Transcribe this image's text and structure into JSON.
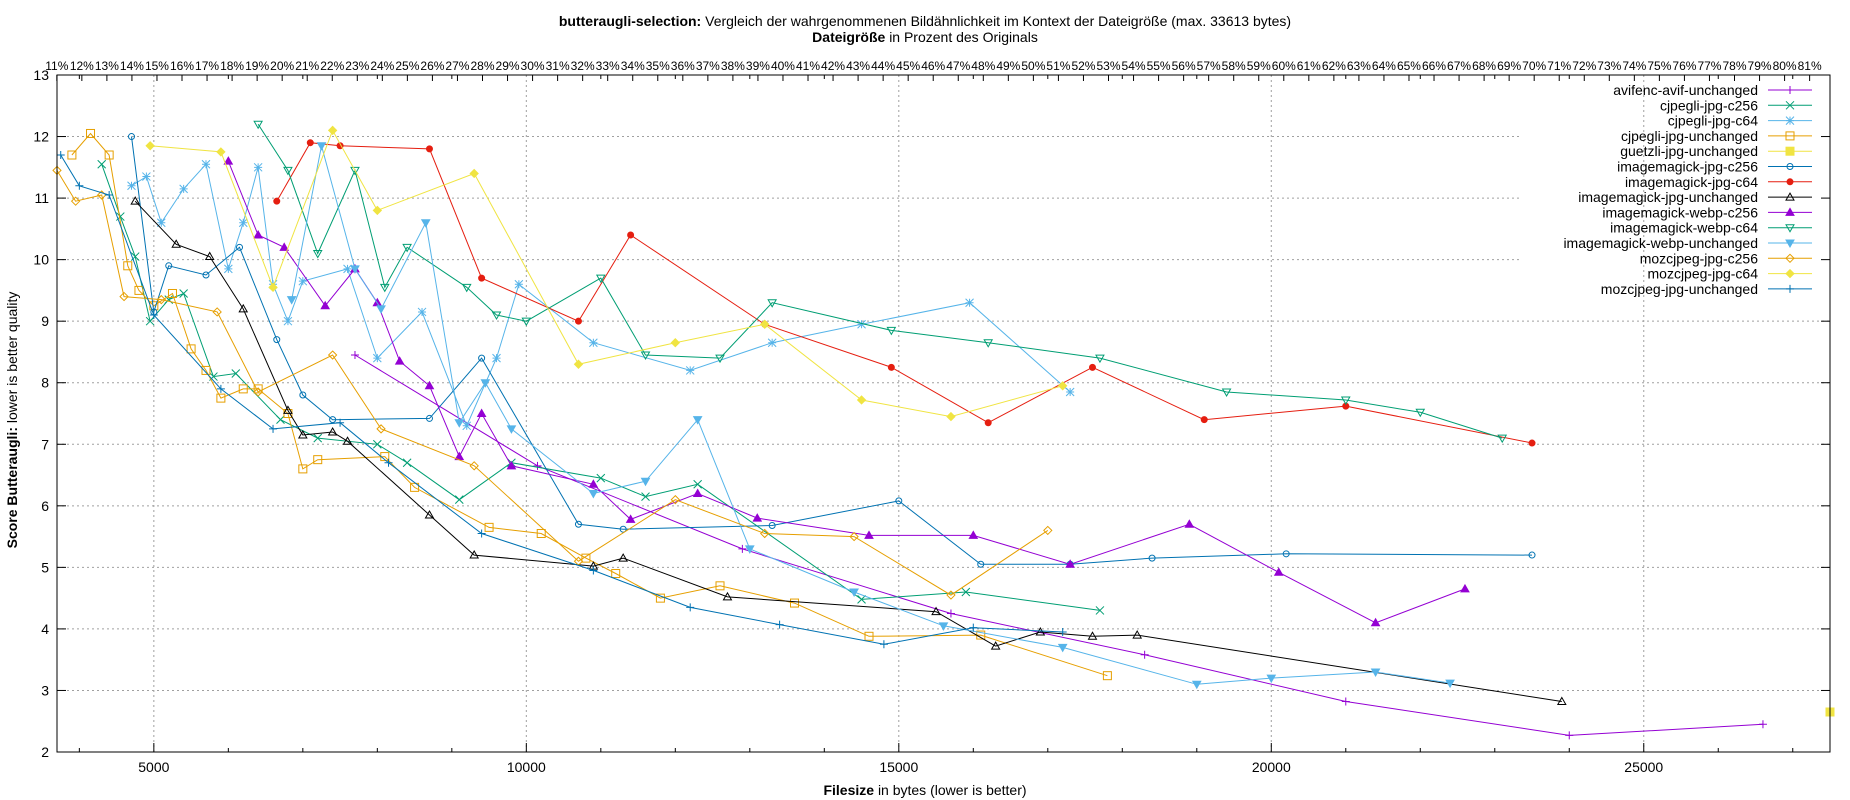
{
  "chart_data": {
    "type": "line",
    "title": "butteraugli-selection:",
    "subtitle": "Vergleich der wahrgenommenen Bildähnlichkeit im Kontext der Dateigröße (max. 33613 bytes)",
    "x2label_bold": "Dateigröße",
    "x2label_rest": "in Prozent des Originals",
    "xlabel_bold": "Filesize",
    "xlabel_rest": "in bytes (lower is better)",
    "ylabel_bold": "Score Butteraugli:",
    "ylabel_rest": "lower is better quality",
    "xlim": [
      3700,
      27500
    ],
    "ylim": [
      2,
      13
    ],
    "xticks": [
      5000,
      10000,
      15000,
      20000,
      25000
    ],
    "yticks": [
      2,
      3,
      4,
      5,
      6,
      7,
      8,
      9,
      10,
      11,
      12,
      13
    ],
    "x2max_bytes": 33613,
    "x2_ticks_percent": [
      11,
      12,
      13,
      14,
      15,
      16,
      17,
      18,
      19,
      20,
      21,
      22,
      23,
      24,
      25,
      26,
      27,
      28,
      29,
      30,
      31,
      32,
      33,
      34,
      35,
      36,
      37,
      38,
      39,
      40,
      41,
      42,
      43,
      44,
      45,
      46,
      47,
      48,
      49,
      50,
      51,
      52,
      53,
      54,
      55,
      56,
      57,
      58,
      59,
      60,
      61,
      62,
      63,
      64,
      65,
      66,
      67,
      68,
      69,
      70,
      71,
      72,
      73,
      74,
      75,
      76,
      77,
      78,
      79,
      80,
      81
    ],
    "grid": true,
    "legend_position": "top-right",
    "series": [
      {
        "name": "avifenc-avif-unchanged",
        "color": "#9400d3",
        "marker": "plus",
        "points": [
          [
            7700,
            8.45
          ],
          [
            10150,
            6.65
          ],
          [
            12900,
            5.3
          ],
          [
            15700,
            4.25
          ],
          [
            18300,
            3.58
          ],
          [
            21000,
            2.82
          ],
          [
            24000,
            2.27
          ],
          [
            26600,
            2.45
          ]
        ]
      },
      {
        "name": "cjpegli-jpg-c256",
        "color": "#009e73",
        "marker": "cross",
        "points": [
          [
            4300,
            11.55
          ],
          [
            4550,
            10.7
          ],
          [
            4750,
            10.05
          ],
          [
            4950,
            9.0
          ],
          [
            5200,
            9.35
          ],
          [
            5400,
            9.45
          ],
          [
            5800,
            8.1
          ],
          [
            6100,
            8.15
          ],
          [
            6700,
            7.4
          ],
          [
            7200,
            7.1
          ],
          [
            8000,
            7.0
          ],
          [
            8400,
            6.7
          ],
          [
            9100,
            6.1
          ],
          [
            9800,
            6.7
          ],
          [
            11000,
            6.45
          ],
          [
            11600,
            6.15
          ],
          [
            12300,
            6.35
          ],
          [
            14500,
            4.48
          ],
          [
            15900,
            4.6
          ],
          [
            17700,
            4.3
          ]
        ]
      },
      {
        "name": "cjpegli-jpg-c64",
        "color": "#56b4e9",
        "marker": "star",
        "points": [
          [
            4700,
            11.2
          ],
          [
            4900,
            11.35
          ],
          [
            5100,
            10.6
          ],
          [
            5400,
            11.15
          ],
          [
            5700,
            11.55
          ],
          [
            6000,
            9.85
          ],
          [
            6200,
            10.6
          ],
          [
            6400,
            11.5
          ],
          [
            6600,
            9.6
          ],
          [
            6800,
            9.0
          ],
          [
            7000,
            9.65
          ],
          [
            7600,
            9.85
          ],
          [
            8000,
            8.4
          ],
          [
            8600,
            9.15
          ],
          [
            9200,
            7.3
          ],
          [
            9600,
            8.4
          ],
          [
            9900,
            9.6
          ],
          [
            10900,
            8.65
          ],
          [
            12200,
            8.2
          ],
          [
            13300,
            8.65
          ],
          [
            14500,
            8.95
          ],
          [
            15950,
            9.3
          ],
          [
            17300,
            7.85
          ]
        ]
      },
      {
        "name": "cjpegli-jpg-unchanged",
        "color": "#e69f00",
        "marker": "square",
        "points": [
          [
            3900,
            11.7
          ],
          [
            4150,
            12.05
          ],
          [
            4400,
            11.7
          ],
          [
            4650,
            9.9
          ],
          [
            4800,
            9.5
          ],
          [
            5000,
            9.25
          ],
          [
            5250,
            9.45
          ],
          [
            5500,
            8.55
          ],
          [
            5700,
            8.2
          ],
          [
            5900,
            7.75
          ],
          [
            6200,
            7.9
          ],
          [
            6400,
            7.9
          ],
          [
            6800,
            7.5
          ],
          [
            7000,
            6.6
          ],
          [
            7200,
            6.75
          ],
          [
            8100,
            6.8
          ],
          [
            8500,
            6.3
          ],
          [
            9500,
            5.65
          ],
          [
            10200,
            5.55
          ],
          [
            10800,
            5.15
          ],
          [
            11200,
            4.9
          ],
          [
            11800,
            4.5
          ],
          [
            12600,
            4.7
          ],
          [
            13600,
            4.42
          ],
          [
            14600,
            3.88
          ],
          [
            16100,
            3.9
          ],
          [
            17800,
            3.24
          ]
        ]
      },
      {
        "name": "guetzli-jpg-unchanged",
        "color": "#f0e442",
        "marker": "filled-square",
        "points": [
          [
            27500,
            2.65
          ]
        ]
      },
      {
        "name": "imagemagick-jpg-c256",
        "color": "#0072b2",
        "marker": "circle",
        "points": [
          [
            4700,
            12.0
          ],
          [
            5000,
            9.15
          ],
          [
            5200,
            9.9
          ],
          [
            5700,
            9.75
          ],
          [
            6150,
            10.2
          ],
          [
            6650,
            8.7
          ],
          [
            7000,
            7.8
          ],
          [
            7400,
            7.4
          ],
          [
            8700,
            7.42
          ],
          [
            9400,
            8.4
          ],
          [
            10700,
            5.7
          ],
          [
            11300,
            5.62
          ],
          [
            13300,
            5.68
          ],
          [
            15000,
            6.08
          ],
          [
            16100,
            5.05
          ],
          [
            17300,
            5.05
          ],
          [
            18400,
            5.15
          ],
          [
            20200,
            5.22
          ],
          [
            23500,
            5.2
          ]
        ]
      },
      {
        "name": "imagemagick-jpg-c64",
        "color": "#e51e10",
        "marker": "filled-circle",
        "points": [
          [
            6650,
            10.95
          ],
          [
            7100,
            11.9
          ],
          [
            7500,
            11.85
          ],
          [
            8700,
            11.8
          ],
          [
            9400,
            9.7
          ],
          [
            10700,
            9.0
          ],
          [
            11400,
            10.4
          ],
          [
            13200,
            8.95
          ],
          [
            14900,
            8.25
          ],
          [
            16200,
            7.35
          ],
          [
            17600,
            8.25
          ],
          [
            19100,
            7.4
          ],
          [
            21000,
            7.62
          ],
          [
            23500,
            7.02
          ]
        ]
      },
      {
        "name": "imagemagick-jpg-unchanged",
        "color": "#000000",
        "marker": "triangle",
        "points": [
          [
            4750,
            10.95
          ],
          [
            5300,
            10.25
          ],
          [
            5750,
            10.05
          ],
          [
            6200,
            9.2
          ],
          [
            6800,
            7.55
          ],
          [
            7000,
            7.15
          ],
          [
            7400,
            7.2
          ],
          [
            7600,
            7.05
          ],
          [
            8700,
            5.85
          ],
          [
            9300,
            5.2
          ],
          [
            10900,
            5.02
          ],
          [
            11300,
            5.15
          ],
          [
            12700,
            4.52
          ],
          [
            15500,
            4.28
          ],
          [
            16300,
            3.72
          ],
          [
            16900,
            3.95
          ],
          [
            17600,
            3.88
          ],
          [
            18200,
            3.9
          ],
          [
            23900,
            2.82
          ]
        ]
      },
      {
        "name": "imagemagick-webp-c256",
        "color": "#9400d3",
        "marker": "filled-triangle",
        "points": [
          [
            6000,
            11.6
          ],
          [
            6400,
            10.4
          ],
          [
            6750,
            10.2
          ],
          [
            7300,
            9.25
          ],
          [
            7700,
            9.85
          ],
          [
            8000,
            9.3
          ],
          [
            8300,
            8.35
          ],
          [
            8700,
            7.95
          ],
          [
            9100,
            6.8
          ],
          [
            9400,
            7.5
          ],
          [
            9800,
            6.65
          ],
          [
            10900,
            6.35
          ],
          [
            11400,
            5.78
          ],
          [
            12300,
            6.2
          ],
          [
            13100,
            5.8
          ],
          [
            14600,
            5.52
          ],
          [
            16000,
            5.52
          ],
          [
            17300,
            5.05
          ],
          [
            18900,
            5.7
          ],
          [
            20100,
            4.92
          ],
          [
            21400,
            4.1
          ],
          [
            22600,
            4.65
          ]
        ]
      },
      {
        "name": "imagemagick-webp-c64",
        "color": "#009e73",
        "marker": "down-triangle",
        "points": [
          [
            6400,
            12.2
          ],
          [
            6800,
            11.45
          ],
          [
            7200,
            10.1
          ],
          [
            7700,
            11.45
          ],
          [
            8100,
            9.55
          ],
          [
            8400,
            10.2
          ],
          [
            9200,
            9.55
          ],
          [
            9600,
            9.1
          ],
          [
            10000,
            9.0
          ],
          [
            11000,
            9.7
          ],
          [
            11600,
            8.45
          ],
          [
            12600,
            8.4
          ],
          [
            13300,
            9.3
          ],
          [
            14900,
            8.85
          ],
          [
            16200,
            8.65
          ],
          [
            17700,
            8.4
          ],
          [
            19400,
            7.85
          ],
          [
            21000,
            7.72
          ],
          [
            22000,
            7.52
          ],
          [
            23100,
            7.1
          ]
        ]
      },
      {
        "name": "imagemagick-webp-unchanged",
        "color": "#56b4e9",
        "marker": "filled-down-triangle",
        "points": [
          [
            6850,
            9.35
          ],
          [
            7250,
            11.85
          ],
          [
            7700,
            9.85
          ],
          [
            8050,
            9.2
          ],
          [
            8650,
            10.6
          ],
          [
            9100,
            7.35
          ],
          [
            9450,
            8.0
          ],
          [
            9800,
            7.25
          ],
          [
            10900,
            6.2
          ],
          [
            11600,
            6.4
          ],
          [
            12300,
            7.4
          ],
          [
            13000,
            5.3
          ],
          [
            14400,
            4.6
          ],
          [
            15600,
            4.05
          ],
          [
            17200,
            3.7
          ],
          [
            19000,
            3.1
          ],
          [
            20000,
            3.2
          ],
          [
            21400,
            3.3
          ],
          [
            22400,
            3.12
          ]
        ]
      },
      {
        "name": "mozcjpeg-jpg-c256",
        "color": "#e69f00",
        "marker": "diamond",
        "points": [
          [
            3700,
            11.45
          ],
          [
            3950,
            10.95
          ],
          [
            4300,
            11.05
          ],
          [
            4600,
            9.4
          ],
          [
            5100,
            9.35
          ],
          [
            5850,
            9.15
          ],
          [
            6400,
            7.85
          ],
          [
            7400,
            8.45
          ],
          [
            8050,
            7.25
          ],
          [
            9300,
            6.65
          ],
          [
            10700,
            5.1
          ],
          [
            12000,
            6.1
          ],
          [
            13200,
            5.55
          ],
          [
            14400,
            5.5
          ],
          [
            15700,
            4.55
          ],
          [
            17000,
            5.6
          ]
        ]
      },
      {
        "name": "mozcjpeg-jpg-c64",
        "color": "#f0e442",
        "marker": "filled-diamond",
        "points": [
          [
            4950,
            11.85
          ],
          [
            5900,
            11.75
          ],
          [
            6600,
            9.55
          ],
          [
            7400,
            12.1
          ],
          [
            8000,
            10.8
          ],
          [
            9300,
            11.4
          ],
          [
            10700,
            8.3
          ],
          [
            12000,
            8.65
          ],
          [
            13200,
            8.95
          ],
          [
            14500,
            7.72
          ],
          [
            15700,
            7.45
          ],
          [
            17200,
            7.95
          ]
        ]
      },
      {
        "name": "mozcjpeg-jpg-unchanged",
        "color": "#0072b2",
        "marker": "plus",
        "points": [
          [
            3750,
            11.7
          ],
          [
            4000,
            11.2
          ],
          [
            4400,
            11.05
          ],
          [
            5000,
            9.1
          ],
          [
            5900,
            7.9
          ],
          [
            6600,
            7.25
          ],
          [
            7500,
            7.35
          ],
          [
            8150,
            6.7
          ],
          [
            9400,
            5.55
          ],
          [
            10900,
            4.95
          ],
          [
            12200,
            4.35
          ],
          [
            13400,
            4.07
          ],
          [
            14800,
            3.75
          ],
          [
            16000,
            4.02
          ],
          [
            17200,
            3.95
          ]
        ]
      }
    ]
  }
}
